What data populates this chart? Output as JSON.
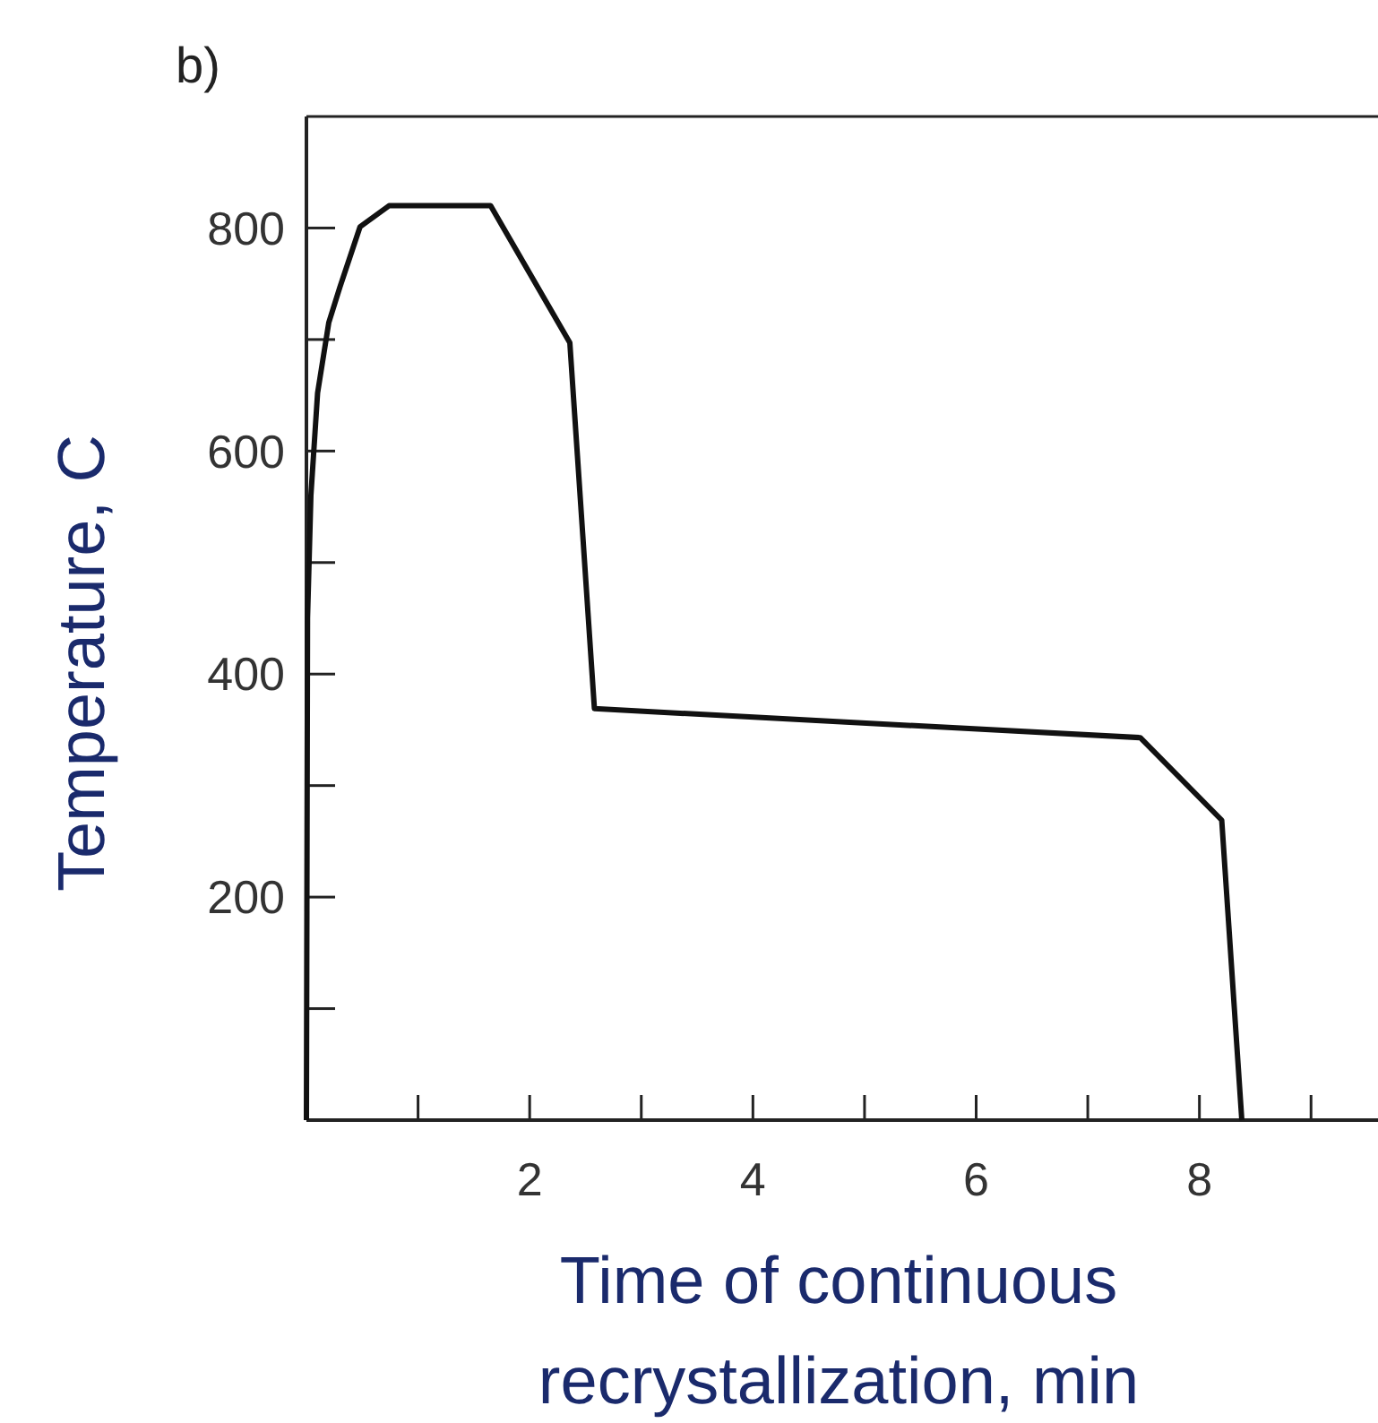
{
  "chart_data": {
    "type": "line",
    "title": "b)",
    "xlabel": "Time of continuous recrystallization, min",
    "ylabel": "Temperature, C",
    "xlim": [
      0,
      9.6
    ],
    "xticks": [
      {
        "value": 1,
        "label": null
      },
      2,
      {
        "value": 3,
        "label": null
      },
      4,
      {
        "value": 5,
        "label": null
      },
      6,
      {
        "value": 7,
        "label": null
      },
      8,
      {
        "value": 9,
        "label": null
      }
    ],
    "ylim": [
      0,
      900
    ],
    "yticks": [
      {
        "value": 100,
        "label": null
      },
      200,
      {
        "value": 300,
        "label": null
      },
      400,
      {
        "value": 500,
        "label": null
      },
      600,
      {
        "value": 700,
        "label": null
      },
      800
    ],
    "grid": false,
    "marker": "none",
    "line_style": "solid",
    "series": [
      {
        "color": "#111111",
        "x": [
          0,
          0.01,
          0.04,
          0.1,
          0.2,
          0.3,
          0.48,
          0.74,
          1.65,
          2.36,
          2.58,
          7.47,
          8.2,
          8.38
        ],
        "values": [
          0,
          450,
          560,
          652,
          715,
          747,
          801,
          820,
          820,
          697,
          369,
          343,
          269,
          0
        ]
      }
    ]
  }
}
